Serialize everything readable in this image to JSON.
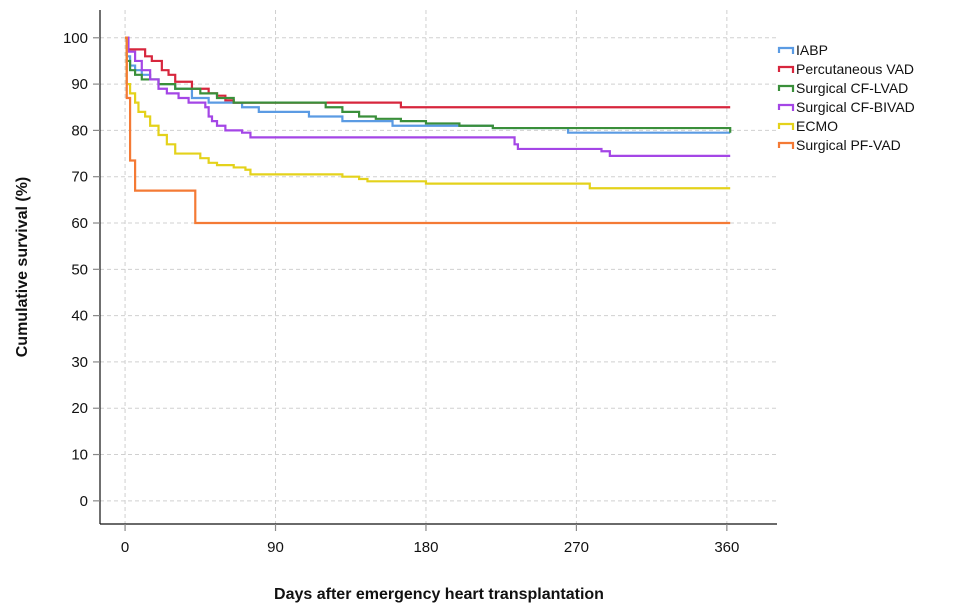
{
  "chart_data": {
    "type": "line",
    "step": true,
    "xlabel": "Days after emergency heart transplantation",
    "ylabel": "Cumulative survival (%)",
    "xlim": [
      -15,
      390
    ],
    "ylim": [
      -5,
      106
    ],
    "xticks": [
      0,
      90,
      180,
      270,
      360
    ],
    "yticks": [
      0,
      10,
      20,
      30,
      40,
      50,
      60,
      70,
      80,
      90,
      100
    ],
    "grid": true,
    "legend_position": "top-right",
    "series": [
      {
        "name": "IABP",
        "color": "#5b9be3",
        "points": [
          [
            0,
            100
          ],
          [
            1,
            96
          ],
          [
            3,
            94
          ],
          [
            6,
            93
          ],
          [
            10,
            92
          ],
          [
            15,
            91
          ],
          [
            20,
            90
          ],
          [
            30,
            89
          ],
          [
            40,
            87
          ],
          [
            50,
            86
          ],
          [
            70,
            85
          ],
          [
            80,
            84
          ],
          [
            100,
            84
          ],
          [
            110,
            83
          ],
          [
            130,
            82
          ],
          [
            150,
            82
          ],
          [
            160,
            81
          ],
          [
            210,
            81
          ],
          [
            220,
            80.5
          ],
          [
            260,
            80.5
          ],
          [
            265,
            79.5
          ],
          [
            300,
            79.5
          ],
          [
            362,
            79.5
          ]
        ]
      },
      {
        "name": "Percutaneous VAD",
        "color": "#d7263d",
        "points": [
          [
            0,
            100
          ],
          [
            2,
            97.5
          ],
          [
            12,
            96
          ],
          [
            16,
            95
          ],
          [
            22,
            93
          ],
          [
            26,
            92
          ],
          [
            30,
            90.5
          ],
          [
            40,
            89
          ],
          [
            50,
            88
          ],
          [
            55,
            87.5
          ],
          [
            60,
            86.5
          ],
          [
            65,
            86
          ],
          [
            165,
            86
          ],
          [
            165,
            85
          ],
          [
            362,
            85
          ]
        ]
      },
      {
        "name": "Surgical CF-LVAD",
        "color": "#3a8f3a",
        "points": [
          [
            0,
            100
          ],
          [
            1,
            95
          ],
          [
            3,
            93
          ],
          [
            6,
            92
          ],
          [
            10,
            91
          ],
          [
            20,
            90
          ],
          [
            30,
            89
          ],
          [
            45,
            88
          ],
          [
            55,
            87
          ],
          [
            65,
            86
          ],
          [
            100,
            86
          ],
          [
            120,
            85
          ],
          [
            130,
            84
          ],
          [
            140,
            83
          ],
          [
            150,
            82.5
          ],
          [
            165,
            82
          ],
          [
            180,
            81.5
          ],
          [
            200,
            81
          ],
          [
            220,
            80.5
          ],
          [
            280,
            80.5
          ],
          [
            360,
            80.5
          ],
          [
            362,
            79.5
          ]
        ]
      },
      {
        "name": "Surgical CF-BIVAD",
        "color": "#a446e6",
        "points": [
          [
            0,
            100
          ],
          [
            2,
            97
          ],
          [
            6,
            95
          ],
          [
            10,
            93
          ],
          [
            15,
            91
          ],
          [
            20,
            89
          ],
          [
            25,
            88
          ],
          [
            32,
            87
          ],
          [
            38,
            86
          ],
          [
            48,
            85
          ],
          [
            50,
            83
          ],
          [
            52,
            82
          ],
          [
            55,
            81
          ],
          [
            60,
            80
          ],
          [
            70,
            79.5
          ],
          [
            75,
            78.5
          ],
          [
            230,
            78.5
          ],
          [
            233,
            77
          ],
          [
            235,
            76
          ],
          [
            280,
            76
          ],
          [
            285,
            75.5
          ],
          [
            290,
            74.5
          ],
          [
            362,
            74.5
          ]
        ]
      },
      {
        "name": "ECMO",
        "color": "#e4d21b",
        "points": [
          [
            0,
            100
          ],
          [
            1,
            90
          ],
          [
            3,
            88
          ],
          [
            6,
            86
          ],
          [
            8,
            84
          ],
          [
            12,
            83
          ],
          [
            15,
            81
          ],
          [
            20,
            79
          ],
          [
            25,
            77
          ],
          [
            30,
            75
          ],
          [
            40,
            75
          ],
          [
            45,
            74
          ],
          [
            50,
            73
          ],
          [
            55,
            72.5
          ],
          [
            65,
            72
          ],
          [
            72,
            71.5
          ],
          [
            75,
            70.5
          ],
          [
            125,
            70.5
          ],
          [
            130,
            70
          ],
          [
            140,
            69.5
          ],
          [
            145,
            69
          ],
          [
            175,
            69
          ],
          [
            180,
            68.5
          ],
          [
            200,
            68.5
          ],
          [
            220,
            68.5
          ],
          [
            275,
            68.5
          ],
          [
            278,
            67.5
          ],
          [
            362,
            67.5
          ]
        ]
      },
      {
        "name": "Surgical PF-VAD",
        "color": "#f47a35",
        "points": [
          [
            0,
            100
          ],
          [
            1,
            87
          ],
          [
            3,
            73.5
          ],
          [
            6,
            67
          ],
          [
            42,
            67
          ],
          [
            42,
            60
          ],
          [
            362,
            60
          ]
        ]
      }
    ]
  }
}
